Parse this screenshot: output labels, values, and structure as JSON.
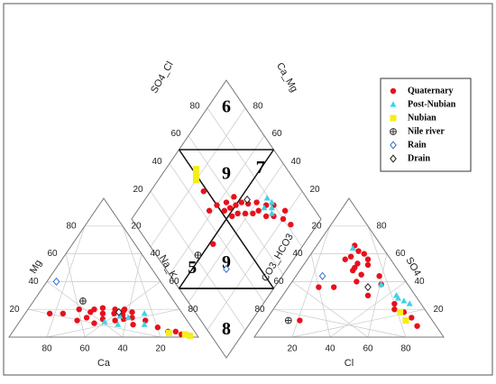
{
  "chart_data": {
    "type": "scatter",
    "subtype": "piper-diagram",
    "title": "",
    "grid": true,
    "legend_position": "right",
    "series": [
      {
        "name": "Quaternary",
        "marker": "filled-circle",
        "color": "#e8101c"
      },
      {
        "name": "Post-Nubian",
        "marker": "filled-triangle",
        "color": "#3fd2e6"
      },
      {
        "name": "Nubian",
        "marker": "filled-square",
        "color": "#f4ee1a"
      },
      {
        "name": "Nile river",
        "marker": "circle-plus",
        "color": "#333333"
      },
      {
        "name": "Rain",
        "marker": "open-diamond",
        "color": "#3a6fc4"
      },
      {
        "name": "Drain",
        "marker": "open-diamond",
        "color": "#222222"
      }
    ],
    "cation_triangle": {
      "axis_labels": {
        "left": "Mg",
        "right": "Na_K",
        "bottom": "Ca"
      },
      "ticks": [
        "20",
        "40",
        "60",
        "80"
      ],
      "points": [
        {
          "series": "Quaternary",
          "ca": 63,
          "mg": 17
        },
        {
          "series": "Quaternary",
          "ca": 58,
          "mg": 12
        },
        {
          "series": "Quaternary",
          "ca": 53,
          "mg": 20
        },
        {
          "series": "Quaternary",
          "ca": 52,
          "mg": 14
        },
        {
          "series": "Quaternary",
          "ca": 48,
          "mg": 18
        },
        {
          "series": "Quaternary",
          "ca": 50,
          "mg": 10
        },
        {
          "series": "Quaternary",
          "ca": 45,
          "mg": 20
        },
        {
          "series": "Quaternary",
          "ca": 44,
          "mg": 13
        },
        {
          "series": "Quaternary",
          "ca": 42,
          "mg": 17
        },
        {
          "series": "Quaternary",
          "ca": 40,
          "mg": 21
        },
        {
          "series": "Quaternary",
          "ca": 38,
          "mg": 12
        },
        {
          "series": "Quaternary",
          "ca": 36,
          "mg": 17
        },
        {
          "series": "Quaternary",
          "ca": 34,
          "mg": 20
        },
        {
          "series": "Quaternary",
          "ca": 33,
          "mg": 13
        },
        {
          "series": "Quaternary",
          "ca": 32,
          "mg": 16
        },
        {
          "series": "Quaternary",
          "ca": 30,
          "mg": 19
        },
        {
          "series": "Quaternary",
          "ca": 29,
          "mg": 20
        },
        {
          "series": "Quaternary",
          "ca": 28,
          "mg": 14
        },
        {
          "series": "Quaternary",
          "ca": 26,
          "mg": 18
        },
        {
          "series": "Quaternary",
          "ca": 30,
          "mg": 9
        },
        {
          "series": "Quaternary",
          "ca": 22,
          "mg": 12
        },
        {
          "series": "Quaternary",
          "ca": 18,
          "mg": 7
        },
        {
          "series": "Quaternary",
          "ca": 14,
          "mg": 4
        },
        {
          "series": "Quaternary",
          "ca": 10,
          "mg": 4
        },
        {
          "series": "Quaternary",
          "ca": 8,
          "mg": 2
        },
        {
          "series": "Quaternary",
          "ca": 70,
          "mg": 17
        },
        {
          "series": "Post-Nubian",
          "ca": 44,
          "mg": 11
        },
        {
          "series": "Post-Nubian",
          "ca": 38,
          "mg": 9
        },
        {
          "series": "Post-Nubian",
          "ca": 34,
          "mg": 15
        },
        {
          "series": "Post-Nubian",
          "ca": 30,
          "mg": 14
        },
        {
          "series": "Post-Nubian",
          "ca": 24,
          "mg": 9
        },
        {
          "series": "Post-Nubian",
          "ca": 20,
          "mg": 17
        },
        {
          "series": "Nubian",
          "ca": 14,
          "mg": 3
        },
        {
          "series": "Nubian",
          "ca": 6,
          "mg": 2
        },
        {
          "series": "Nubian",
          "ca": 4,
          "mg": 1
        },
        {
          "series": "Nile river",
          "ca": 48,
          "mg": 26
        },
        {
          "series": "Rain",
          "ca": 55,
          "mg": 40
        },
        {
          "series": "Drain",
          "ca": 33,
          "mg": 18
        }
      ]
    },
    "anion_triangle": {
      "axis_labels": {
        "left": "CO3_HCO3",
        "right": "SO4",
        "bottom": "Cl"
      },
      "ticks": [
        "20",
        "40",
        "60",
        "80"
      ],
      "points": [
        {
          "series": "Quaternary",
          "cl": 32,
          "so4": 56
        },
        {
          "series": "Quaternary",
          "cl": 24,
          "so4": 62
        },
        {
          "series": "Quaternary",
          "cl": 28,
          "so4": 60
        },
        {
          "series": "Quaternary",
          "cl": 22,
          "so4": 58
        },
        {
          "series": "Quaternary",
          "cl": 28,
          "so4": 53
        },
        {
          "series": "Quaternary",
          "cl": 20,
          "so4": 66
        },
        {
          "series": "Quaternary",
          "cl": 34,
          "so4": 45
        },
        {
          "series": "Quaternary",
          "cl": 28,
          "so4": 50
        },
        {
          "series": "Quaternary",
          "cl": 34,
          "so4": 52
        },
        {
          "series": "Quaternary",
          "cl": 20,
          "so4": 56
        },
        {
          "series": "Quaternary",
          "cl": 34,
          "so4": 40
        },
        {
          "series": "Quaternary",
          "cl": 44,
          "so4": 44
        },
        {
          "series": "Quaternary",
          "cl": 48,
          "so4": 38
        },
        {
          "series": "Quaternary",
          "cl": 45,
          "so4": 30
        },
        {
          "series": "Quaternary",
          "cl": 62,
          "so4": 24
        },
        {
          "series": "Quaternary",
          "cl": 64,
          "so4": 20
        },
        {
          "series": "Quaternary",
          "cl": 70,
          "so4": 18
        },
        {
          "series": "Quaternary",
          "cl": 76,
          "so4": 14
        },
        {
          "series": "Quaternary",
          "cl": 82,
          "so4": 8
        },
        {
          "series": "Quaternary",
          "cl": 18,
          "so4": 12
        },
        {
          "series": "Quaternary",
          "cl": 16,
          "so4": 36
        },
        {
          "series": "Quaternary",
          "cl": 24,
          "so4": 36
        },
        {
          "series": "Quaternary",
          "cl": 28,
          "so4": 48
        },
        {
          "series": "Post-Nubian",
          "cl": 20,
          "so4": 64
        },
        {
          "series": "Post-Nubian",
          "cl": 48,
          "so4": 38
        },
        {
          "series": "Post-Nubian",
          "cl": 60,
          "so4": 30
        },
        {
          "series": "Post-Nubian",
          "cl": 62,
          "so4": 28
        },
        {
          "series": "Post-Nubian",
          "cl": 66,
          "so4": 26
        },
        {
          "series": "Post-Nubian",
          "cl": 70,
          "so4": 24
        },
        {
          "series": "Nubian",
          "cl": 68,
          "so4": 18
        },
        {
          "series": "Nubian",
          "cl": 74,
          "so4": 12
        },
        {
          "series": "Nile river",
          "cl": 12,
          "so4": 12
        },
        {
          "series": "Rain",
          "cl": 14,
          "so4": 44
        },
        {
          "series": "Drain",
          "cl": 42,
          "so4": 36
        }
      ]
    },
    "diamond": {
      "axis_labels": {
        "upper_left": "SO4_Cl",
        "upper_right": "Ca_Mg"
      },
      "ticks": [
        "20",
        "40",
        "60",
        "80"
      ],
      "zones": [
        "6",
        "9",
        "5",
        "7",
        "9",
        "8"
      ],
      "points": [
        {
          "series": "Quaternary",
          "so4cl": 14,
          "camg": 82
        },
        {
          "series": "Quaternary",
          "so4cl": 20,
          "camg": 80
        },
        {
          "series": "Quaternary",
          "so4cl": 22,
          "camg": 84
        },
        {
          "series": "Quaternary",
          "so4cl": 26,
          "camg": 76
        },
        {
          "series": "Quaternary",
          "so4cl": 30,
          "camg": 80
        },
        {
          "series": "Quaternary",
          "so4cl": 30,
          "camg": 72
        },
        {
          "series": "Quaternary",
          "so4cl": 34,
          "camg": 76
        },
        {
          "series": "Quaternary",
          "so4cl": 36,
          "camg": 70
        },
        {
          "series": "Quaternary",
          "so4cl": 38,
          "camg": 66
        },
        {
          "series": "Quaternary",
          "so4cl": 40,
          "camg": 72
        },
        {
          "series": "Quaternary",
          "so4cl": 42,
          "camg": 62
        },
        {
          "series": "Quaternary",
          "so4cl": 44,
          "camg": 67
        },
        {
          "series": "Quaternary",
          "so4cl": 46,
          "camg": 58
        },
        {
          "series": "Quaternary",
          "so4cl": 48,
          "camg": 64
        },
        {
          "series": "Quaternary",
          "so4cl": 50,
          "camg": 60
        },
        {
          "series": "Quaternary",
          "so4cl": 48,
          "camg": 54
        },
        {
          "series": "Quaternary",
          "so4cl": 52,
          "camg": 56
        },
        {
          "series": "Quaternary",
          "so4cl": 54,
          "camg": 52
        },
        {
          "series": "Quaternary",
          "so4cl": 56,
          "camg": 56
        },
        {
          "series": "Quaternary",
          "so4cl": 54,
          "camg": 62
        },
        {
          "series": "Quaternary",
          "so4cl": 60,
          "camg": 50
        },
        {
          "series": "Quaternary",
          "so4cl": 62,
          "camg": 44
        },
        {
          "series": "Quaternary",
          "so4cl": 72,
          "camg": 48
        },
        {
          "series": "Quaternary",
          "so4cl": 48,
          "camg": 34
        },
        {
          "series": "Post-Nubian",
          "so4cl": 28,
          "camg": 76
        },
        {
          "series": "Post-Nubian",
          "so4cl": 30,
          "camg": 78
        },
        {
          "series": "Post-Nubian",
          "so4cl": 34,
          "camg": 74
        },
        {
          "series": "Post-Nubian",
          "so4cl": 32,
          "camg": 80
        },
        {
          "series": "Post-Nubian",
          "so4cl": 36,
          "camg": 79
        },
        {
          "series": "Nubian",
          "so4cl": 80,
          "camg": 48
        },
        {
          "series": "Nubian",
          "so4cl": 82,
          "camg": 50
        },
        {
          "series": "Nubian",
          "so4cl": 84,
          "camg": 52
        },
        {
          "series": "Nile river",
          "so4cl": 52,
          "camg": 22
        },
        {
          "series": "Rain",
          "so4cl": 32,
          "camg": 32
        },
        {
          "series": "Drain",
          "so4cl": 46,
          "camg": 68
        }
      ]
    }
  }
}
